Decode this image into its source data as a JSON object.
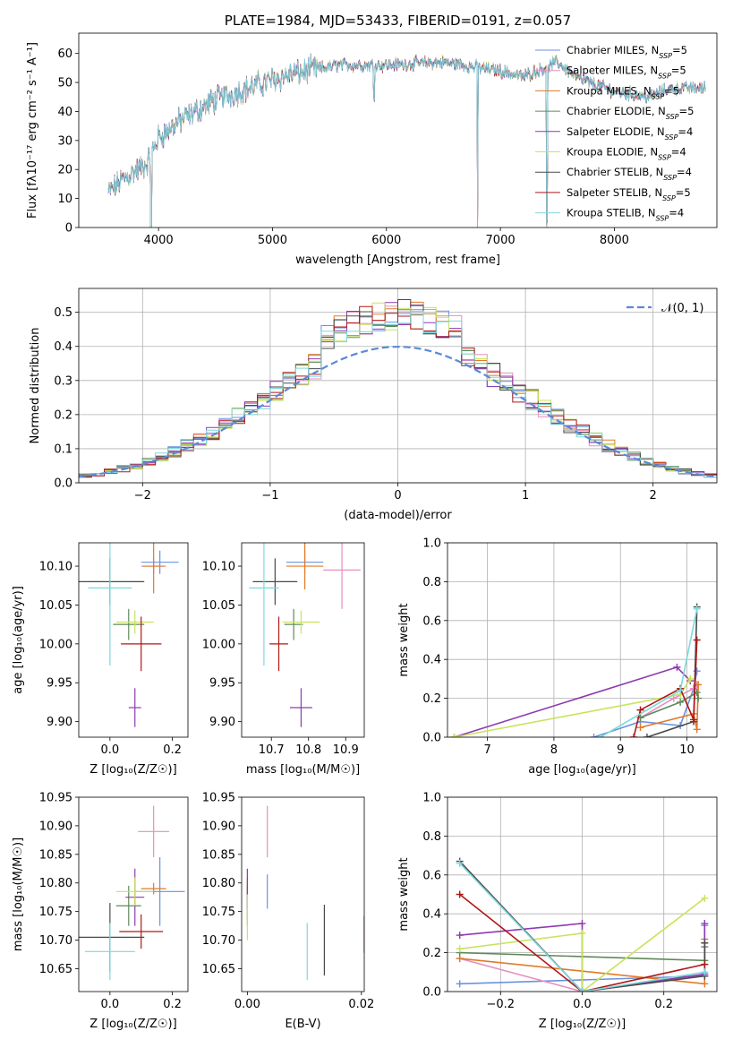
{
  "colors": {
    "chabrier_miles": "#6a93e0",
    "salpeter_miles": "#e58fc0",
    "kroupa_miles": "#e07a2a",
    "chabrier_elodie": "#5f8a5a",
    "salpeter_elodie": "#8e3ab0",
    "kroupa_elodie": "#c8e45a",
    "chabrier_stelib": "#4a4a4a",
    "salpeter_stelib": "#b01818",
    "kroupa_stelib": "#7fd8dc",
    "gaussian": "#5b8ad8"
  },
  "chart_data": [
    {
      "type": "line",
      "title": "PLATE=1984, MJD=53433, FIBERID=0191, z=0.057",
      "xlabel": "wavelength [Angstrom, rest frame]",
      "ylabel": "Flux [fλ10⁻¹⁷ erg cm⁻² s⁻¹ A⁻¹]",
      "xlim": [
        3300,
        8900
      ],
      "ylim": [
        0,
        67
      ],
      "xticks": [
        "4000",
        "5000",
        "6000",
        "7000",
        "8000"
      ],
      "yticks": [
        "0",
        "10",
        "20",
        "30",
        "40",
        "50",
        "60"
      ],
      "spectrum_trend": {
        "x": [
          3560,
          3700,
          3900,
          4000,
          4200,
          4500,
          5000,
          5300,
          5600,
          6000,
          6500,
          7000,
          7200,
          7500,
          7700,
          8000,
          8300,
          8500,
          8800
        ],
        "y": [
          12,
          17,
          22,
          31,
          37,
          44,
          51,
          54,
          56,
          56,
          57,
          54,
          52,
          57,
          51,
          47,
          45,
          48,
          48
        ]
      },
      "dips": [
        [
          3934,
          -38
        ],
        [
          5892,
          -10
        ],
        [
          6800,
          -57
        ],
        [
          7410,
          -55
        ]
      ],
      "legend_placement": "top-right",
      "series": [
        {
          "name": "Chabrier MILES, N_SSP=5"
        },
        {
          "name": "Salpeter MILES, N_SSP=5"
        },
        {
          "name": "Kroupa MILES, N_SSP=5"
        },
        {
          "name": "Chabrier ELODIE, N_SSP=5"
        },
        {
          "name": "Salpeter ELODIE, N_SSP=4"
        },
        {
          "name": "Kroupa ELODIE, N_SSP=4"
        },
        {
          "name": "Chabrier STELIB, N_SSP=4"
        },
        {
          "name": "Salpeter STELIB, N_SSP=5"
        },
        {
          "name": "Kroupa STELIB, N_SSP=4"
        }
      ]
    },
    {
      "type": "histogram",
      "xlabel": "(data-model)/error",
      "ylabel": "Normed distribution",
      "xlim": [
        -2.5,
        2.5
      ],
      "ylim": [
        0,
        0.57
      ],
      "xticks": [
        "−2",
        "−1",
        "0",
        "1",
        "2"
      ],
      "yticks": [
        "0.0",
        "0.1",
        "0.2",
        "0.3",
        "0.4",
        "0.5"
      ],
      "grid": true,
      "legend": "𝒩(0, 1)",
      "legend_placement": "top-right",
      "bin_width": 0.1,
      "bin_start": -2.5,
      "bins": 50
    },
    {
      "type": "scatter",
      "xlabel": "Z [log₁₀(Z/Z☉)]",
      "ylabel": "age  [log₁₀(age/yr)]",
      "xlim": [
        -0.1,
        0.25
      ],
      "ylim": [
        9.88,
        10.13
      ],
      "xticks": [
        "0.0",
        "0.2"
      ],
      "yticks": [
        "9.90",
        "9.95",
        "10.00",
        "10.05",
        "10.10"
      ],
      "points": [
        {
          "x": 0.16,
          "y": 10.105,
          "xerr": 0.06,
          "yerr": 0.015
        },
        {
          "x": 0.14,
          "y": 10.1,
          "xerr": 0.04,
          "yerr": 0.01
        },
        {
          "x": 0.14,
          "y": 10.1,
          "xerr": 0.035,
          "yerr": 0.035
        },
        {
          "x": 0.06,
          "y": 10.025,
          "xerr": 0.05,
          "yerr": 0.02
        },
        {
          "x": 0.08,
          "y": 9.918,
          "xerr": 0.02,
          "yerr": 0.025
        },
        {
          "x": 0.08,
          "y": 10.028,
          "xerr": 0.06,
          "yerr": 0.015
        },
        {
          "x": 0.0,
          "y": 10.08,
          "xerr": 0.11,
          "yerr": 0.03
        },
        {
          "x": 0.1,
          "y": 10.0,
          "xerr": 0.065,
          "yerr": 0.035
        },
        {
          "x": 0.0,
          "y": 10.072,
          "xerr": 0.07,
          "yerr": 0.1
        }
      ]
    },
    {
      "type": "scatter",
      "xlabel": "mass [log₁₀(M/M☉)]",
      "ylabel": "",
      "xlim": [
        10.62,
        10.95
      ],
      "ylim": [
        9.88,
        10.13
      ],
      "xticks": [
        "10.7",
        "10.8",
        "10.9"
      ],
      "yticks": [
        "9.90",
        "9.95",
        "10.00",
        "10.05",
        "10.10"
      ],
      "points": [
        {
          "x": 10.79,
          "y": 10.105,
          "xerr": 0.05,
          "yerr": 0.015
        },
        {
          "x": 10.89,
          "y": 10.095,
          "xerr": 0.05,
          "yerr": 0.05
        },
        {
          "x": 10.79,
          "y": 10.1,
          "xerr": 0.05,
          "yerr": 0.03
        },
        {
          "x": 10.76,
          "y": 10.025,
          "xerr": 0.025,
          "yerr": 0.02
        },
        {
          "x": 10.78,
          "y": 9.918,
          "xerr": 0.03,
          "yerr": 0.025
        },
        {
          "x": 10.78,
          "y": 10.028,
          "xerr": 0.05,
          "yerr": 0.015
        },
        {
          "x": 10.71,
          "y": 10.08,
          "xerr": 0.06,
          "yerr": 0.03
        },
        {
          "x": 10.72,
          "y": 10.0,
          "xerr": 0.025,
          "yerr": 0.035
        },
        {
          "x": 10.68,
          "y": 10.072,
          "xerr": 0.04,
          "yerr": 0.1
        }
      ]
    },
    {
      "type": "line",
      "xlabel": "age  [log₁₀(age/yr)]",
      "ylabel": "mass weight",
      "xlim": [
        6.4,
        10.45
      ],
      "ylim": [
        0,
        1
      ],
      "xticks": [
        "7",
        "8",
        "9",
        "10"
      ],
      "yticks": [
        "0.0",
        "0.2",
        "0.4",
        "0.6",
        "0.8",
        "1.0"
      ],
      "grid": true,
      "series": [
        {
          "x": [
            8.6,
            9.3,
            9.9,
            10.1,
            10.15
          ],
          "y": [
            0.0,
            0.08,
            0.06,
            0.25,
            0.34
          ]
        },
        {
          "x": [
            9.3,
            9.8,
            10.1,
            10.15
          ],
          "y": [
            0.1,
            0.2,
            0.25,
            0.27
          ]
        },
        {
          "x": [
            9.3,
            10.1,
            10.15,
            10.17
          ],
          "y": [
            0.05,
            0.12,
            0.04,
            0.27
          ]
        },
        {
          "x": [
            9.3,
            9.9,
            10.15,
            10.17
          ],
          "y": [
            0.1,
            0.18,
            0.23,
            0.2
          ]
        },
        {
          "x": [
            6.5,
            9.85,
            10.05
          ],
          "y": [
            0.0,
            0.36,
            0.29
          ]
        },
        {
          "x": [
            6.5,
            9.9,
            10.05
          ],
          "y": [
            0.0,
            0.22,
            0.3
          ]
        },
        {
          "x": [
            9.4,
            10.1,
            10.15
          ],
          "y": [
            0.0,
            0.08,
            0.67
          ]
        },
        {
          "x": [
            9.2,
            9.3,
            9.9,
            10.1,
            10.15
          ],
          "y": [
            0.0,
            0.14,
            0.25,
            0.09,
            0.5
          ]
        },
        {
          "x": [
            8.7,
            9.9,
            10.15
          ],
          "y": [
            0.0,
            0.24,
            0.66
          ]
        }
      ]
    },
    {
      "type": "scatter",
      "xlabel": "Z [log₁₀(Z/Z☉)]",
      "ylabel": "mass [log₁₀(M/M☉)]",
      "xlim": [
        -0.1,
        0.25
      ],
      "ylim": [
        10.61,
        10.95
      ],
      "xticks": [
        "0.0",
        "0.2"
      ],
      "yticks": [
        "10.65",
        "10.70",
        "10.75",
        "10.80",
        "10.85",
        "10.90",
        "10.95"
      ],
      "points": [
        {
          "x": 0.16,
          "y": 10.785,
          "xerr": 0.08,
          "yerr": 0.06
        },
        {
          "x": 0.14,
          "y": 10.89,
          "xerr": 0.05,
          "yerr": 0.045
        },
        {
          "x": 0.14,
          "y": 10.79,
          "xerr": 0.04,
          "yerr": 0.01
        },
        {
          "x": 0.06,
          "y": 10.76,
          "xerr": 0.04,
          "yerr": 0.035
        },
        {
          "x": 0.08,
          "y": 10.775,
          "xerr": 0.03,
          "yerr": 0.05
        },
        {
          "x": 0.08,
          "y": 10.785,
          "xerr": 0.06,
          "yerr": 0.025
        },
        {
          "x": 0.0,
          "y": 10.705,
          "xerr": 0.11,
          "yerr": 0.06
        },
        {
          "x": 0.1,
          "y": 10.715,
          "xerr": 0.07,
          "yerr": 0.03
        },
        {
          "x": 0.0,
          "y": 10.68,
          "xerr": 0.08,
          "yerr": 0.05
        }
      ]
    },
    {
      "type": "scatter",
      "xlabel": "E(B-V)",
      "ylabel": "",
      "xlim": [
        -0.001,
        0.0205
      ],
      "ylim": [
        10.61,
        10.95
      ],
      "xticks": [
        "0.00",
        "0.02"
      ],
      "yticks": [
        "10.65",
        "10.70",
        "10.75",
        "10.80",
        "10.85",
        "10.90",
        "10.95"
      ],
      "points": [
        {
          "x": 0.0035,
          "y": 10.785,
          "xerr": 0,
          "yerr": 0.03
        },
        {
          "x": 0.0035,
          "y": 10.89,
          "xerr": 0,
          "yerr": 0.045
        },
        {
          "x": 0.0,
          "y": 10.79,
          "xerr": 0,
          "yerr": 0.02
        },
        {
          "x": 0.0,
          "y": 10.76,
          "xerr": 0,
          "yerr": 0.035
        },
        {
          "x": 0.0,
          "y": 10.79,
          "xerr": 0,
          "yerr": 0.035
        },
        {
          "x": 0.0,
          "y": 10.74,
          "xerr": 0,
          "yerr": 0.04
        },
        {
          "x": 0.0135,
          "y": 10.7,
          "xerr": 0,
          "yerr": 0.062
        },
        {
          "x": 0.0205,
          "y": 10.71,
          "xerr": 0,
          "yerr": 0.032
        },
        {
          "x": 0.0105,
          "y": 10.68,
          "xerr": 0,
          "yerr": 0.05
        }
      ]
    },
    {
      "type": "line",
      "xlabel": "Z [log₁₀(Z/Z☉)]",
      "ylabel": "mass weight",
      "xlim": [
        -0.33,
        0.33
      ],
      "ylim": [
        0,
        1
      ],
      "xticks": [
        "−0.2",
        "0.0",
        "0.2"
      ],
      "yticks": [
        "0.0",
        "0.2",
        "0.4",
        "0.6",
        "0.8",
        "1.0"
      ],
      "grid": true,
      "series": [
        {
          "x": [
            -0.3,
            0.0,
            0.3,
            0.3
          ],
          "y": [
            0.04,
            0.06,
            0.08,
            0.34
          ]
        },
        {
          "x": [
            -0.3,
            0.0,
            0.3
          ],
          "y": [
            0.17,
            0.0,
            0.08
          ]
        },
        {
          "x": [
            -0.3,
            0.3,
            0.3
          ],
          "y": [
            0.17,
            0.04,
            0.27
          ]
        },
        {
          "x": [
            -0.3,
            0.3,
            0.3
          ],
          "y": [
            0.2,
            0.16,
            0.23
          ]
        },
        {
          "x": [
            -0.3,
            0.0,
            0.0,
            0.3,
            0.3
          ],
          "y": [
            0.29,
            0.35,
            0.0,
            0.09,
            0.35
          ]
        },
        {
          "x": [
            -0.3,
            0.0,
            0.0,
            0.3
          ],
          "y": [
            0.22,
            0.3,
            0.0,
            0.48
          ]
        },
        {
          "x": [
            -0.3,
            0.0,
            0.3,
            0.3
          ],
          "y": [
            0.67,
            0.0,
            0.08,
            0.25
          ]
        },
        {
          "x": [
            -0.3,
            0.0,
            0.3
          ],
          "y": [
            0.5,
            0.0,
            0.14
          ]
        },
        {
          "x": [
            -0.3,
            0.0,
            0.3
          ],
          "y": [
            0.66,
            0.0,
            0.1
          ]
        }
      ]
    }
  ]
}
